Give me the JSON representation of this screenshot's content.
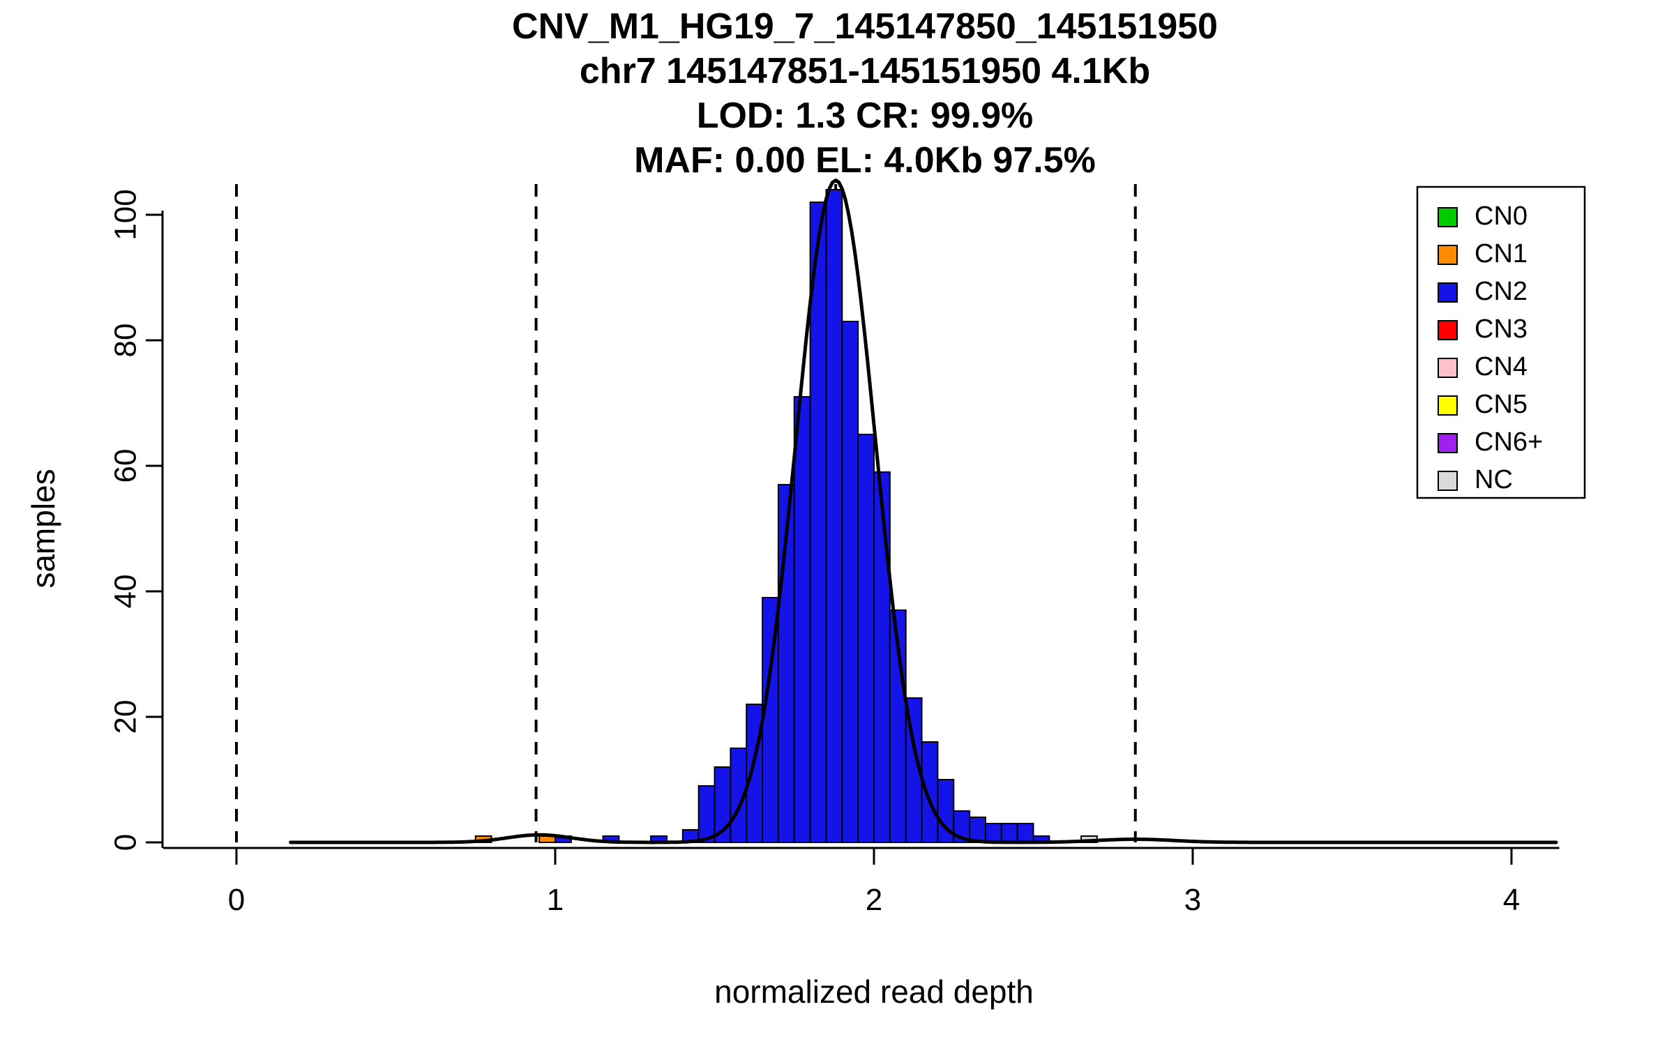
{
  "chart_data": {
    "type": "bar",
    "subtype": "histogram",
    "title_lines": [
      "CNV_M1_HG19_7_145147850_145151950",
      "chr7 145147851-145151950 4.1Kb",
      "LOD: 1.3 CR: 99.9%",
      "MAF: 0.00 EL: 4.0Kb 97.5%"
    ],
    "xlabel": "normalized read depth",
    "ylabel": "samples",
    "x_ticks": [
      0,
      1,
      2,
      3,
      4
    ],
    "y_ticks": [
      0,
      20,
      40,
      60,
      80,
      100
    ],
    "xlim": [
      -0.23,
      4.15
    ],
    "ylim": [
      0,
      104
    ],
    "bin_width": 0.05,
    "bars": [
      {
        "x": 0.75,
        "height": 1,
        "cn": "CN1"
      },
      {
        "x": 0.95,
        "height": 1,
        "cn": "CN1"
      },
      {
        "x": 1.0,
        "height": 1,
        "cn": "CN2"
      },
      {
        "x": 1.15,
        "height": 1,
        "cn": "CN2"
      },
      {
        "x": 1.3,
        "height": 1,
        "cn": "CN2"
      },
      {
        "x": 1.4,
        "height": 2,
        "cn": "CN2"
      },
      {
        "x": 1.45,
        "height": 9,
        "cn": "CN2"
      },
      {
        "x": 1.5,
        "height": 12,
        "cn": "CN2"
      },
      {
        "x": 1.55,
        "height": 15,
        "cn": "CN2"
      },
      {
        "x": 1.6,
        "height": 22,
        "cn": "CN2"
      },
      {
        "x": 1.65,
        "height": 39,
        "cn": "CN2"
      },
      {
        "x": 1.7,
        "height": 57,
        "cn": "CN2"
      },
      {
        "x": 1.75,
        "height": 71,
        "cn": "CN2"
      },
      {
        "x": 1.8,
        "height": 102,
        "cn": "CN2"
      },
      {
        "x": 1.85,
        "height": 104,
        "cn": "CN2"
      },
      {
        "x": 1.9,
        "height": 83,
        "cn": "CN2"
      },
      {
        "x": 1.95,
        "height": 65,
        "cn": "CN2"
      },
      {
        "x": 2.0,
        "height": 59,
        "cn": "CN2"
      },
      {
        "x": 2.05,
        "height": 37,
        "cn": "CN2"
      },
      {
        "x": 2.1,
        "height": 23,
        "cn": "CN2"
      },
      {
        "x": 2.15,
        "height": 16,
        "cn": "CN2"
      },
      {
        "x": 2.2,
        "height": 10,
        "cn": "CN2"
      },
      {
        "x": 2.25,
        "height": 5,
        "cn": "CN2"
      },
      {
        "x": 2.3,
        "height": 4,
        "cn": "CN2"
      },
      {
        "x": 2.35,
        "height": 3,
        "cn": "CN2"
      },
      {
        "x": 2.4,
        "height": 3,
        "cn": "CN2"
      },
      {
        "x": 2.45,
        "height": 3,
        "cn": "CN2"
      },
      {
        "x": 2.5,
        "height": 1,
        "cn": "CN2"
      },
      {
        "x": 2.65,
        "height": 1,
        "cn": "NC"
      }
    ],
    "dashed_lines_x": [
      0,
      0.94,
      1.88,
      2.82
    ],
    "curve_components": [
      {
        "mu": 0.95,
        "sigma": 0.1,
        "amp": 1.2
      },
      {
        "mu": 1.88,
        "sigma": 0.125,
        "amp": 105.5
      },
      {
        "mu": 2.82,
        "sigma": 0.12,
        "amp": 0.5
      }
    ],
    "colors": {
      "CN0": "#00CC00",
      "CN1": "#FF8C00",
      "CN2": "#1414E8",
      "CN3": "#FF0000",
      "CN4": "#FFC0CB",
      "CN5": "#FFFF00",
      "CN6+": "#A020F0",
      "NC": "#D9D9D9"
    },
    "legend": [
      "CN0",
      "CN1",
      "CN2",
      "CN3",
      "CN4",
      "CN5",
      "CN6+",
      "NC"
    ],
    "legend_position": "top-right",
    "grid": false
  }
}
